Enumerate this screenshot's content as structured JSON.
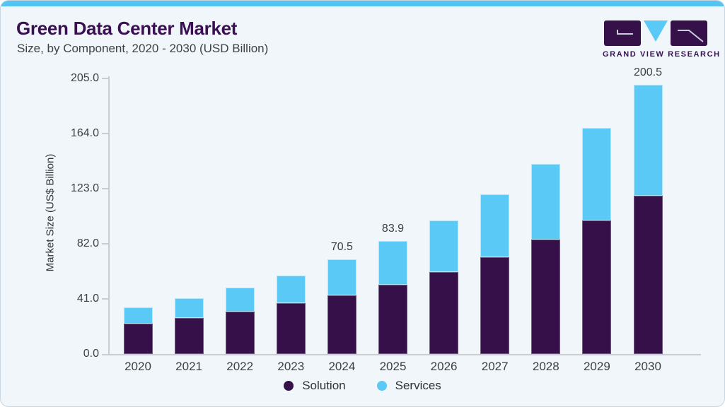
{
  "header": {
    "title": "Green Data Center Market",
    "subtitle": "Size, by Component, 2020 - 2030 (USD Billion)"
  },
  "logo": {
    "name": "grand-view-research-logo",
    "text": "GRAND VIEW RESEARCH"
  },
  "chart_data": {
    "type": "bar",
    "stacked": true,
    "title": "Green Data Center Market Size, by Component, 2020 - 2030 (USD Billion)",
    "categories": [
      "2020",
      "2021",
      "2022",
      "2023",
      "2024",
      "2025",
      "2026",
      "2027",
      "2028",
      "2029",
      "2030"
    ],
    "series": [
      {
        "name": "Solution",
        "color": "#351049",
        "values": [
          22.7,
          26.9,
          31.5,
          37.7,
          43.7,
          51.7,
          61.1,
          72.1,
          85.0,
          99.5,
          117.8
        ]
      },
      {
        "name": "Services",
        "color": "#5BC9F5",
        "values": [
          11.8,
          14.4,
          17.8,
          20.8,
          26.8,
          32.2,
          38.1,
          46.9,
          56.4,
          68.8,
          82.7
        ]
      }
    ],
    "totals_labeled": {
      "4": "70.5",
      "5": "83.9",
      "10": "200.5"
    },
    "xlabel": "",
    "ylabel": "Market Size (US$ Billion)",
    "ytick_labels": [
      "0.0",
      "41.0",
      "82.0",
      "123.0",
      "164.0",
      "205.0"
    ],
    "yticks": [
      0,
      41,
      82,
      123,
      164,
      205
    ],
    "ylim": [
      0,
      205
    ],
    "grid": false,
    "legend_position": "bottom",
    "legend": [
      "Solution",
      "Services"
    ]
  },
  "colors": {
    "accent_strip": "#55C4F0",
    "title": "#3A1053",
    "card_background": "#F0F6FA",
    "card_border": "#C9D6DF",
    "axis": "#C5CDD5",
    "solution": "#351049",
    "services": "#5BC9F5"
  }
}
